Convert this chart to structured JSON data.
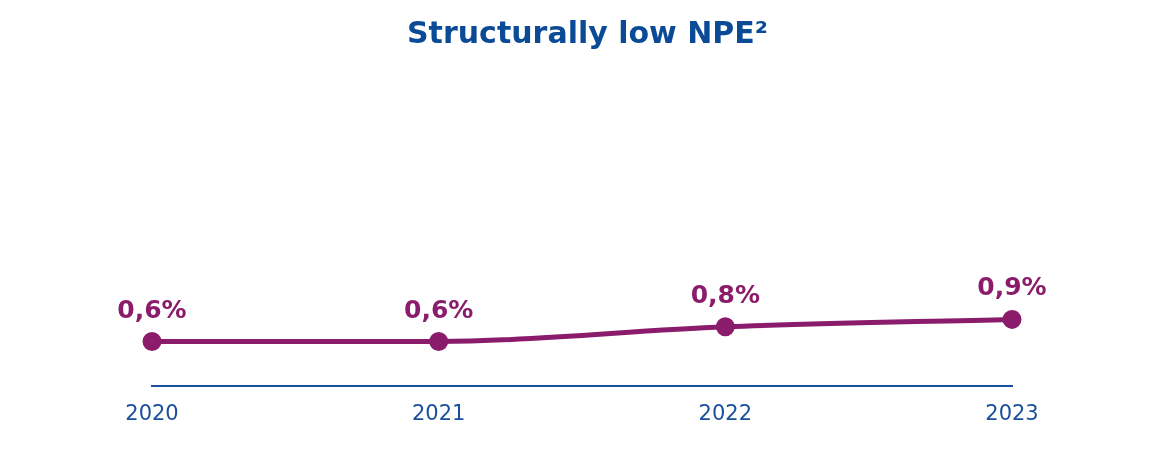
{
  "chart_data": {
    "type": "line",
    "title": "Structurally low NPE²",
    "categories": [
      "2020",
      "2021",
      "2022",
      "2023"
    ],
    "series": [
      {
        "color": "#8b1c6b",
        "values": [
          0.6,
          0.6,
          0.8,
          0.9
        ],
        "value_labels": [
          "0,6%",
          "0,6%",
          "0,8%",
          "0,9%"
        ]
      }
    ],
    "grid": false,
    "legend": false,
    "marker": "circle",
    "line_style": "solid"
  }
}
